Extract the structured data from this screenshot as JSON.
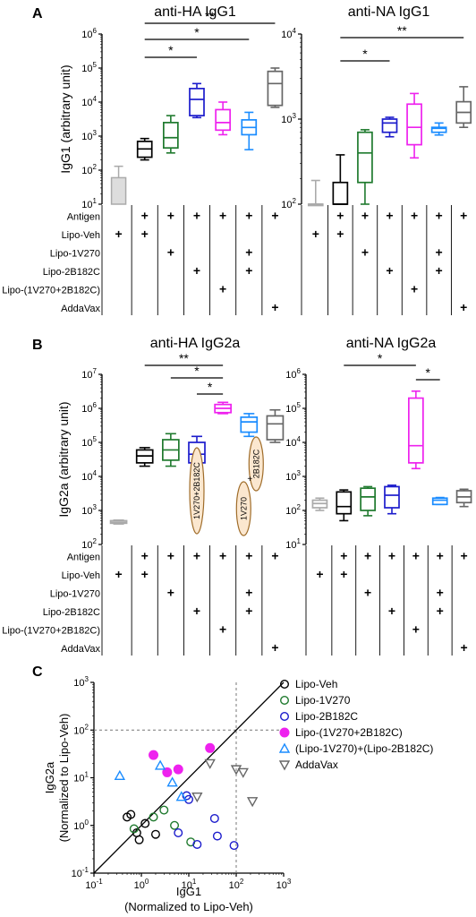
{
  "panel_letters": [
    "A",
    "B",
    "C"
  ],
  "chart_data": [
    {
      "panel": "A",
      "type": "box",
      "title": "anti-HA IgG1",
      "ylabel": "IgG1 (arbitrary unit)",
      "yscale": "log",
      "ylim": [
        10,
        1000000
      ],
      "yticks": [
        "10^1",
        "10^2",
        "10^3",
        "10^4",
        "10^5",
        "10^6"
      ],
      "groups": [
        {
          "color": "#aaaaaa",
          "fill": "#dddddd",
          "style": "bar",
          "min": 10,
          "q1": 10,
          "median": 60,
          "q3": 60,
          "max": 130
        },
        {
          "color": "#000000",
          "min": 200,
          "q1": 240,
          "median": 420,
          "q3": 700,
          "max": 850
        },
        {
          "color": "#1f7a2e",
          "min": 320,
          "q1": 450,
          "median": 900,
          "q3": 2500,
          "max": 4000
        },
        {
          "color": "#1c1ccc",
          "min": 3500,
          "q1": 4000,
          "median": 12000,
          "q3": 25000,
          "max": 35000
        },
        {
          "color": "#ee22ee",
          "min": 1100,
          "q1": 1500,
          "median": 2500,
          "q3": 6000,
          "max": 10000
        },
        {
          "color": "#1a8cff",
          "min": 400,
          "q1": 1100,
          "median": 1800,
          "q3": 3000,
          "max": 5000
        },
        {
          "color": "#666666",
          "min": 7000,
          "q1": 8000,
          "median": 35000,
          "q3": 80000,
          "max": 100000
        }
      ],
      "significance": [
        {
          "from": 1,
          "to": 3,
          "label": "*"
        },
        {
          "from": 1,
          "to": 5,
          "label": "*"
        },
        {
          "from": 1,
          "to": 6,
          "label": "**"
        }
      ]
    },
    {
      "panel": "A",
      "type": "box",
      "title": "anti-NA IgG1",
      "yscale": "log",
      "ylim": [
        100,
        10000
      ],
      "yticks": [
        "10^2",
        "10^3",
        "10^4"
      ],
      "groups": [
        {
          "color": "#aaaaaa",
          "min": 100,
          "q1": 100,
          "median": 100,
          "q3": 100,
          "max": 190
        },
        {
          "color": "#000000",
          "min": 100,
          "q1": 100,
          "median": 100,
          "q3": 180,
          "max": 380
        },
        {
          "color": "#1f7a2e",
          "min": 100,
          "q1": 180,
          "median": 400,
          "q3": 700,
          "max": 750
        },
        {
          "color": "#1c1ccc",
          "min": 620,
          "q1": 700,
          "median": 900,
          "q3": 1000,
          "max": 1050
        },
        {
          "color": "#ee22ee",
          "min": 350,
          "q1": 500,
          "median": 800,
          "q3": 1500,
          "max": 2000
        },
        {
          "color": "#1a8cff",
          "min": 650,
          "q1": 700,
          "median": 780,
          "q3": 800,
          "max": 900
        },
        {
          "color": "#666666",
          "min": 800,
          "q1": 900,
          "median": 1200,
          "q3": 1600,
          "max": 2400
        }
      ],
      "significance": [
        {
          "from": 1,
          "to": 3,
          "label": "*"
        },
        {
          "from": 1,
          "to": 6,
          "label": "**"
        }
      ]
    },
    {
      "panel": "B",
      "type": "box",
      "title": "anti-HA IgG2a",
      "ylabel": "IgG2a (arbitrary unit)",
      "yscale": "log",
      "ylim": [
        100,
        10000000
      ],
      "yticks": [
        "10^2",
        "10^3",
        "10^4",
        "10^5",
        "10^6",
        "10^7"
      ],
      "groups": [
        {
          "color": "#aaaaaa",
          "min": 400,
          "q1": 420,
          "median": 450,
          "q3": 500,
          "max": 520
        },
        {
          "color": "#000000",
          "min": 20000,
          "q1": 25000,
          "median": 40000,
          "q3": 60000,
          "max": 70000
        },
        {
          "color": "#1f7a2e",
          "min": 20000,
          "q1": 30000,
          "median": 60000,
          "q3": 120000,
          "max": 180000
        },
        {
          "color": "#1c1ccc",
          "min": 20000,
          "q1": 25000,
          "median": 45000,
          "q3": 100000,
          "max": 150000
        },
        {
          "color": "#ee22ee",
          "min": 700000,
          "q1": 750000,
          "median": 1000000,
          "q3": 1300000,
          "max": 1500000
        },
        {
          "color": "#1a8cff",
          "min": 150000,
          "q1": 200000,
          "median": 400000,
          "q3": 550000,
          "max": 700000
        },
        {
          "color": "#666666",
          "min": 100000,
          "q1": 120000,
          "median": 350000,
          "q3": 600000,
          "max": 900000
        }
      ],
      "significance": [
        {
          "from": 1,
          "to": 4,
          "label": "**"
        },
        {
          "from": 2,
          "to": 4,
          "label": "*"
        },
        {
          "from": 3,
          "to": 4,
          "label": "*"
        }
      ],
      "ovals": [
        {
          "group": 3,
          "text": "1V270+2B182C"
        },
        {
          "group": 5,
          "text": "1V270",
          "part": "lower"
        },
        {
          "group": 5,
          "text": "2B182C",
          "part": "upper"
        }
      ],
      "plus": "+"
    },
    {
      "panel": "B",
      "type": "box",
      "title": "anti-NA IgG2a",
      "yscale": "log",
      "ylim": [
        10,
        1000000
      ],
      "yticks": [
        "10^1",
        "10^2",
        "10^3",
        "10^4",
        "10^5",
        "10^6"
      ],
      "groups": [
        {
          "color": "#aaaaaa",
          "min": 100,
          "q1": 120,
          "median": 160,
          "q3": 200,
          "max": 230
        },
        {
          "color": "#000000",
          "min": 50,
          "q1": 80,
          "median": 130,
          "q3": 350,
          "max": 400
        },
        {
          "color": "#1f7a2e",
          "min": 70,
          "q1": 100,
          "median": 250,
          "q3": 450,
          "max": 500
        },
        {
          "color": "#1c1ccc",
          "min": 80,
          "q1": 120,
          "median": 280,
          "q3": 500,
          "max": 550
        },
        {
          "color": "#ee22ee",
          "min": 1700,
          "q1": 2500,
          "median": 8000,
          "q3": 200000,
          "max": 320000
        },
        {
          "color": "#1a8cff",
          "min": 150,
          "q1": 150,
          "median": 200,
          "q3": 230,
          "max": 240
        },
        {
          "color": "#666666",
          "min": 130,
          "q1": 170,
          "median": 250,
          "q3": 380,
          "max": 420
        }
      ],
      "significance": [
        {
          "from": 1,
          "to": 4,
          "label": "*"
        },
        {
          "from": 4,
          "to": 5,
          "label": "*"
        }
      ]
    },
    {
      "panel": "C",
      "type": "scatter",
      "xlabel": "IgG1",
      "xlabel2": "(Normalized to Lipo-Veh)",
      "ylabel": "IgG2a",
      "ylabel2": "(Normalized to Lipo-Veh)",
      "xscale": "log",
      "yscale": "log",
      "xlim": [
        0.1,
        1000
      ],
      "ylim": [
        0.1,
        1000
      ],
      "xticks": [
        "10^-1",
        "10^0",
        "10^1",
        "10^2",
        "10^3"
      ],
      "yticks": [
        "10^-1",
        "10^0",
        "10^1",
        "10^2",
        "10^3"
      ],
      "diagonal": true,
      "reference_lines": {
        "x": 100,
        "y": 100
      },
      "series": [
        {
          "name": "Lipo-Veh",
          "marker": "circle-open",
          "color": "#000000",
          "points": [
            [
              0.5,
              1.5
            ],
            [
              0.6,
              1.7
            ],
            [
              0.8,
              0.7
            ],
            [
              0.9,
              0.5
            ],
            [
              1.2,
              1.1
            ],
            [
              2.0,
              0.65
            ]
          ]
        },
        {
          "name": "Lipo-1V270",
          "marker": "circle-open",
          "color": "#1f7a2e",
          "points": [
            [
              0.7,
              0.85
            ],
            [
              1.8,
              1.5
            ],
            [
              3.0,
              2.1
            ],
            [
              5.0,
              1.0
            ],
            [
              11.0,
              0.45
            ]
          ]
        },
        {
          "name": "Lipo-2B182C",
          "marker": "circle-open",
          "color": "#1c1ccc",
          "points": [
            [
              6.0,
              0.7
            ],
            [
              9.0,
              4.2
            ],
            [
              10.0,
              3.5
            ],
            [
              15.0,
              0.4
            ],
            [
              35.0,
              1.4
            ],
            [
              40.0,
              0.6
            ],
            [
              90.0,
              0.38
            ]
          ]
        },
        {
          "name": "Lipo-(1V270+2B182C)",
          "marker": "circle-filled",
          "color": "#ee22ee",
          "points": [
            [
              1.8,
              30.0
            ],
            [
              3.5,
              13.0
            ],
            [
              6.0,
              15.0
            ],
            [
              28.0,
              42.0
            ]
          ]
        },
        {
          "name": "(Lipo-1V270)+(Lipo-2B182C)",
          "marker": "triangle-up-open",
          "color": "#1a8cff",
          "points": [
            [
              0.35,
              11.0
            ],
            [
              2.5,
              18.0
            ],
            [
              4.5,
              8.0
            ],
            [
              7.0,
              4.0
            ]
          ]
        },
        {
          "name": "AddaVax",
          "marker": "triangle-down-open",
          "color": "#666666",
          "points": [
            [
              15.0,
              4.0
            ],
            [
              28.0,
              20.0
            ],
            [
              100.0,
              15.0
            ],
            [
              140.0,
              13.0
            ],
            [
              220.0,
              3.2
            ]
          ]
        }
      ]
    }
  ],
  "treatment_table": {
    "rows": [
      "Antigen",
      "Lipo-Veh",
      "Lipo-1V270",
      "Lipo-2B182C",
      "Lipo-(1V270+2B182C)",
      "AddaVax"
    ],
    "plus": "+",
    "matrix": [
      [
        0,
        1,
        1,
        1,
        1,
        1,
        1
      ],
      [
        1,
        1,
        0,
        0,
        0,
        0,
        0
      ],
      [
        0,
        0,
        1,
        0,
        0,
        1,
        0
      ],
      [
        0,
        0,
        0,
        1,
        0,
        1,
        0
      ],
      [
        0,
        0,
        0,
        0,
        1,
        0,
        0
      ],
      [
        0,
        0,
        0,
        0,
        0,
        0,
        1
      ]
    ]
  }
}
